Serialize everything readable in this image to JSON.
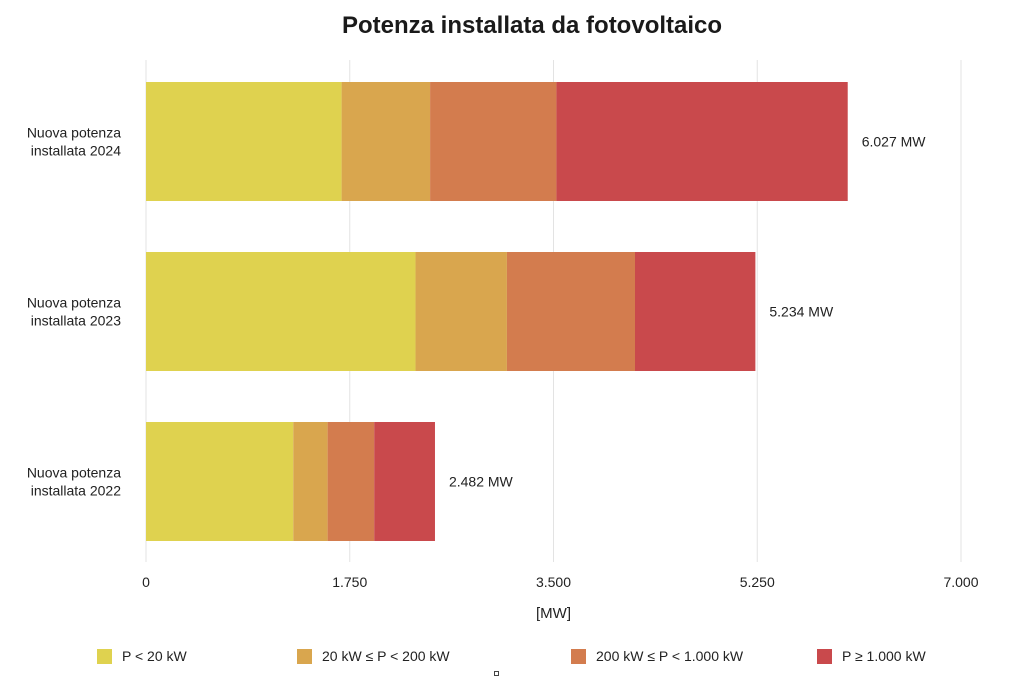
{
  "chart_data": {
    "type": "bar",
    "orientation": "horizontal",
    "stacked": true,
    "title": "Potenza installata da fotovoltaico",
    "xlabel": "[MW]",
    "ylabel": "",
    "xlim": [
      0,
      7000
    ],
    "x_ticks": [
      0,
      1750,
      3500,
      5250,
      7000
    ],
    "x_tick_labels": [
      "0",
      "1.750",
      "3.500",
      "5.250",
      "7.000"
    ],
    "grid": true,
    "legend_position": "bottom",
    "categories": [
      [
        "Nuova potenza",
        "installata 2024"
      ],
      [
        "Nuova potenza",
        "installata 2023"
      ],
      [
        "Nuova potenza",
        "installata 2022"
      ]
    ],
    "series": [
      {
        "name": "P < 20 kW",
        "color": "#dfd24f",
        "values": [
          1680,
          2315,
          1265
        ]
      },
      {
        "name": "20 kW ≤ P < 200 kW",
        "color": "#d9a64e",
        "values": [
          760,
          785,
          295
        ]
      },
      {
        "name": "200 kW ≤ P < 1.000 kW",
        "color": "#d37c4e",
        "values": [
          1085,
          1100,
          400
        ]
      },
      {
        "name": "P ≥ 1.000 kW",
        "color": "#c9494c",
        "values": [
          2502,
          1034,
          522
        ]
      }
    ],
    "totals": [
      6027,
      5234,
      2482
    ],
    "total_labels": [
      "6.027 MW",
      "5.234 MW",
      "2.482 MW"
    ]
  }
}
